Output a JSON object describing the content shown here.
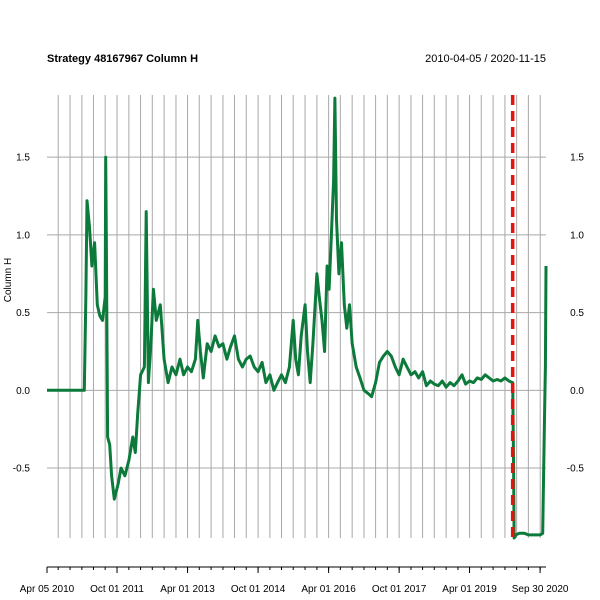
{
  "chart_data": {
    "type": "line",
    "title": "Strategy 48167967 Column H",
    "date_range": "2010-04-05 / 2020-11-15",
    "ylabel": "Column H",
    "xlabel": "",
    "ylim": [
      -0.95,
      1.9
    ],
    "y_ticks": [
      -0.5,
      0.0,
      0.5,
      1.0,
      1.5
    ],
    "y_tick_labels": [
      "-0.5",
      "0.0",
      "0.5",
      "1.0",
      "1.5"
    ],
    "x_ticks": [
      "2010-04-05",
      "2011-10-01",
      "2013-04-01",
      "2014-10-01",
      "2016-04-01",
      "2017-10-01",
      "2019-04-01",
      "2020-09-30"
    ],
    "x_tick_labels": [
      "Apr 05 2010",
      "Oct 01 2011",
      "Apr 01 2013",
      "Oct 01 2014",
      "Apr 01 2016",
      "Oct 01 2017",
      "Apr 01 2019",
      "Sep 30 2020"
    ],
    "x_range": [
      "2010-04-05",
      "2020-11-15"
    ],
    "grid": true,
    "series": [
      {
        "color": "#0b7a3a",
        "points": [
          [
            "2010-04-05",
            0.0
          ],
          [
            "2011-01-20",
            0.0
          ],
          [
            "2011-02-01",
            0.62
          ],
          [
            "2011-02-10",
            1.22
          ],
          [
            "2011-03-01",
            1.05
          ],
          [
            "2011-03-20",
            0.8
          ],
          [
            "2011-04-10",
            0.95
          ],
          [
            "2011-05-01",
            0.55
          ],
          [
            "2011-05-20",
            0.48
          ],
          [
            "2011-06-10",
            0.45
          ],
          [
            "2011-07-01",
            0.6
          ],
          [
            "2011-07-05",
            1.5
          ],
          [
            "2011-07-10",
            1.0
          ],
          [
            "2011-07-20",
            -0.3
          ],
          [
            "2011-08-05",
            -0.35
          ],
          [
            "2011-08-20",
            -0.55
          ],
          [
            "2011-09-10",
            -0.7
          ],
          [
            "2011-10-10",
            -0.6
          ],
          [
            "2011-11-01",
            -0.5
          ],
          [
            "2011-12-01",
            -0.55
          ],
          [
            "2012-01-01",
            -0.45
          ],
          [
            "2012-02-01",
            -0.3
          ],
          [
            "2012-02-20",
            -0.4
          ],
          [
            "2012-03-10",
            -0.15
          ],
          [
            "2012-04-01",
            0.1
          ],
          [
            "2012-05-01",
            0.15
          ],
          [
            "2012-05-15",
            1.15
          ],
          [
            "2012-06-01",
            0.05
          ],
          [
            "2012-06-20",
            0.3
          ],
          [
            "2012-07-10",
            0.65
          ],
          [
            "2012-08-01",
            0.45
          ],
          [
            "2012-09-01",
            0.55
          ],
          [
            "2012-10-01",
            0.2
          ],
          [
            "2012-11-01",
            0.05
          ],
          [
            "2012-12-01",
            0.15
          ],
          [
            "2013-01-01",
            0.1
          ],
          [
            "2013-02-01",
            0.2
          ],
          [
            "2013-03-01",
            0.1
          ],
          [
            "2013-04-01",
            0.15
          ],
          [
            "2013-05-01",
            0.12
          ],
          [
            "2013-06-01",
            0.2
          ],
          [
            "2013-06-20",
            0.45
          ],
          [
            "2013-07-10",
            0.25
          ],
          [
            "2013-08-01",
            0.08
          ],
          [
            "2013-09-01",
            0.3
          ],
          [
            "2013-10-01",
            0.25
          ],
          [
            "2013-11-01",
            0.35
          ],
          [
            "2013-12-01",
            0.28
          ],
          [
            "2014-01-01",
            0.3
          ],
          [
            "2014-02-01",
            0.2
          ],
          [
            "2014-03-01",
            0.28
          ],
          [
            "2014-04-01",
            0.35
          ],
          [
            "2014-05-01",
            0.2
          ],
          [
            "2014-06-01",
            0.15
          ],
          [
            "2014-07-01",
            0.2
          ],
          [
            "2014-08-01",
            0.22
          ],
          [
            "2014-09-01",
            0.15
          ],
          [
            "2014-10-01",
            0.12
          ],
          [
            "2014-11-01",
            0.18
          ],
          [
            "2014-12-01",
            0.05
          ],
          [
            "2015-01-01",
            0.1
          ],
          [
            "2015-02-01",
            0.0
          ],
          [
            "2015-03-01",
            0.05
          ],
          [
            "2015-04-01",
            0.1
          ],
          [
            "2015-05-01",
            0.05
          ],
          [
            "2015-06-01",
            0.15
          ],
          [
            "2015-07-01",
            0.45
          ],
          [
            "2015-07-20",
            0.2
          ],
          [
            "2015-08-10",
            0.1
          ],
          [
            "2015-09-01",
            0.35
          ],
          [
            "2015-10-01",
            0.55
          ],
          [
            "2015-10-20",
            0.25
          ],
          [
            "2015-11-10",
            0.05
          ],
          [
            "2015-12-01",
            0.3
          ],
          [
            "2016-01-01",
            0.75
          ],
          [
            "2016-01-20",
            0.6
          ],
          [
            "2016-02-10",
            0.45
          ],
          [
            "2016-03-01",
            0.25
          ],
          [
            "2016-03-20",
            0.8
          ],
          [
            "2016-04-05",
            0.65
          ],
          [
            "2016-04-25",
            1.05
          ],
          [
            "2016-05-10",
            1.35
          ],
          [
            "2016-05-20",
            1.88
          ],
          [
            "2016-06-01",
            1.1
          ],
          [
            "2016-06-20",
            0.75
          ],
          [
            "2016-07-10",
            0.95
          ],
          [
            "2016-08-01",
            0.55
          ],
          [
            "2016-08-20",
            0.4
          ],
          [
            "2016-09-10",
            0.55
          ],
          [
            "2016-10-01",
            0.3
          ],
          [
            "2016-11-01",
            0.15
          ],
          [
            "2016-12-01",
            0.08
          ],
          [
            "2017-01-01",
            0.0
          ],
          [
            "2017-02-01",
            -0.02
          ],
          [
            "2017-03-01",
            -0.04
          ],
          [
            "2017-04-01",
            0.05
          ],
          [
            "2017-05-01",
            0.18
          ],
          [
            "2017-06-01",
            0.22
          ],
          [
            "2017-07-01",
            0.25
          ],
          [
            "2017-08-01",
            0.22
          ],
          [
            "2017-09-01",
            0.15
          ],
          [
            "2017-10-01",
            0.1
          ],
          [
            "2017-11-01",
            0.2
          ],
          [
            "2017-12-01",
            0.15
          ],
          [
            "2018-01-01",
            0.1
          ],
          [
            "2018-02-01",
            0.12
          ],
          [
            "2018-03-01",
            0.08
          ],
          [
            "2018-04-01",
            0.12
          ],
          [
            "2018-05-01",
            0.03
          ],
          [
            "2018-06-01",
            0.06
          ],
          [
            "2018-07-01",
            0.04
          ],
          [
            "2018-08-01",
            0.03
          ],
          [
            "2018-09-01",
            0.06
          ],
          [
            "2018-10-01",
            0.02
          ],
          [
            "2018-11-01",
            0.05
          ],
          [
            "2018-12-01",
            0.03
          ],
          [
            "2019-01-01",
            0.06
          ],
          [
            "2019-02-01",
            0.1
          ],
          [
            "2019-03-01",
            0.04
          ],
          [
            "2019-04-01",
            0.06
          ],
          [
            "2019-05-01",
            0.05
          ],
          [
            "2019-06-01",
            0.08
          ],
          [
            "2019-07-01",
            0.07
          ],
          [
            "2019-08-01",
            0.1
          ],
          [
            "2019-09-01",
            0.08
          ],
          [
            "2019-10-01",
            0.06
          ],
          [
            "2019-11-01",
            0.07
          ],
          [
            "2019-12-01",
            0.06
          ],
          [
            "2020-01-01",
            0.08
          ],
          [
            "2020-02-01",
            0.06
          ],
          [
            "2020-03-01",
            0.05
          ],
          [
            "2020-03-08",
            -0.5
          ],
          [
            "2020-03-12",
            -0.95
          ],
          [
            "2020-03-25",
            -0.93
          ],
          [
            "2020-04-20",
            -0.92
          ],
          [
            "2020-06-01",
            -0.92
          ],
          [
            "2020-07-01",
            -0.93
          ],
          [
            "2020-08-01",
            -0.93
          ],
          [
            "2020-09-01",
            -0.93
          ],
          [
            "2020-10-01",
            -0.93
          ],
          [
            "2020-10-20",
            -0.92
          ],
          [
            "2020-10-28",
            -0.5
          ],
          [
            "2020-11-05",
            -0.1
          ],
          [
            "2020-11-10",
            0.15
          ],
          [
            "2020-11-15",
            0.8
          ]
        ]
      }
    ],
    "event_line": {
      "date": "2020-03-01",
      "color": "#e8120c",
      "style": "dashed"
    }
  }
}
